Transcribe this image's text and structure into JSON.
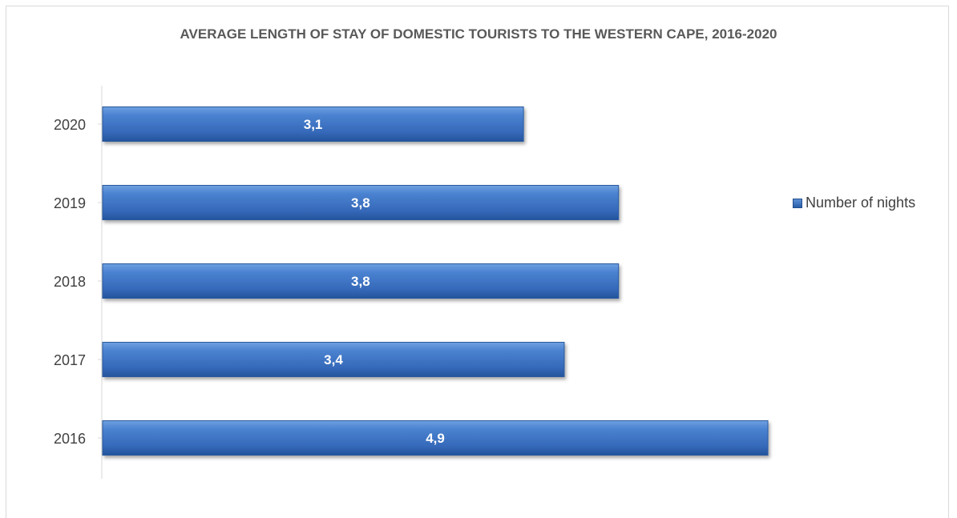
{
  "chart_data": {
    "type": "bar",
    "orientation": "horizontal",
    "title": "AVERAGE LENGTH OF STAY OF DOMESTIC TOURISTS TO THE WESTERN CAPE, 2016-2020",
    "categories": [
      "2020",
      "2019",
      "2018",
      "2017",
      "2016"
    ],
    "series": [
      {
        "name": "Number of nights",
        "values": [
          3.1,
          3.8,
          3.8,
          3.4,
          4.9
        ],
        "labels": [
          "3,1",
          "3,8",
          "3,8",
          "3,4",
          "4,9"
        ]
      }
    ],
    "xlim": [
      0,
      5.5
    ],
    "grid": false,
    "legend_position": "right",
    "colors": {
      "bar": "#3a70c0",
      "bar_dark": "#24549c",
      "bar_light": "#6fa0e0"
    }
  }
}
